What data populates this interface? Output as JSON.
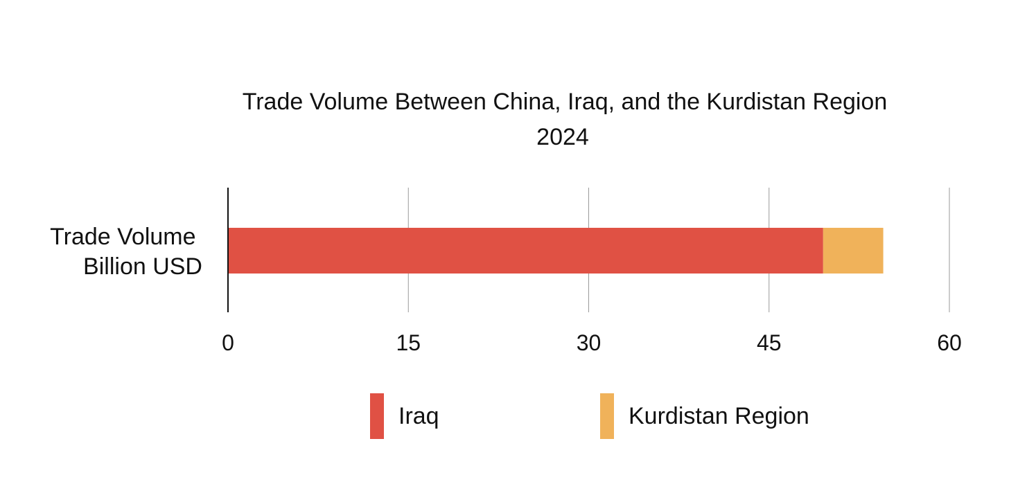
{
  "chart_data": {
    "type": "bar",
    "orientation": "horizontal",
    "stacked": true,
    "title": "Trade Volume Between China, Iraq, and the Kurdistan Region",
    "subtitle": "2024",
    "categories": [
      "Trade Volume Billion USD"
    ],
    "category_label_lines": [
      "Trade Volume",
      "Billion USD"
    ],
    "series": [
      {
        "name": "Iraq",
        "values": [
          49.5
        ],
        "color": "#E05144"
      },
      {
        "name": "Kurdistan Region",
        "values": [
          5
        ],
        "color": "#F0B25A"
      }
    ],
    "xlim": [
      0,
      60
    ],
    "xticks": [
      "0",
      "15",
      "30",
      "45",
      "60"
    ],
    "grid": true,
    "legend_position": "bottom"
  }
}
